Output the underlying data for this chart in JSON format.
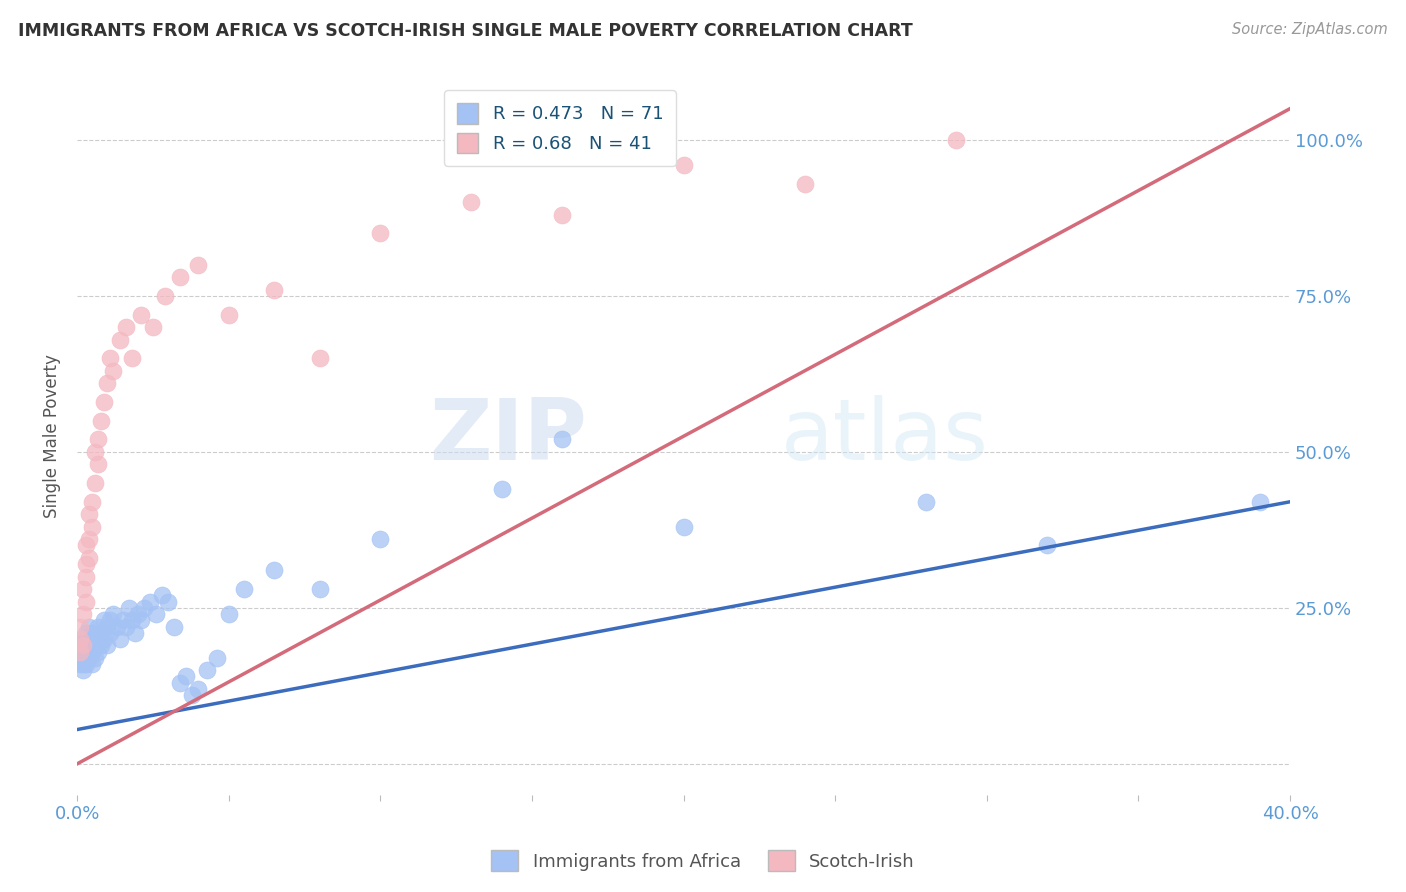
{
  "title": "IMMIGRANTS FROM AFRICA VS SCOTCH-IRISH SINGLE MALE POVERTY CORRELATION CHART",
  "source": "Source: ZipAtlas.com",
  "ylabel": "Single Male Poverty",
  "xlim": [
    0.0,
    0.4
  ],
  "ylim": [
    -0.05,
    1.1
  ],
  "xticks": [
    0.0,
    0.05,
    0.1,
    0.15,
    0.2,
    0.25,
    0.3,
    0.35,
    0.4
  ],
  "xtick_labels": [
    "0.0%",
    "",
    "",
    "",
    "",
    "",
    "",
    "",
    "40.0%"
  ],
  "ytick_positions": [
    0.0,
    0.25,
    0.5,
    0.75,
    1.0
  ],
  "ytick_labels": [
    "",
    "25.0%",
    "50.0%",
    "75.0%",
    "100.0%"
  ],
  "blue_R": 0.473,
  "blue_N": 71,
  "pink_R": 0.68,
  "pink_N": 41,
  "blue_color": "#a4c2f4",
  "pink_color": "#f4b8c1",
  "blue_line_color": "#3c6cbe",
  "pink_line_color": "#d46b7a",
  "watermark_zip": "ZIP",
  "watermark_atlas": "atlas",
  "background_color": "#ffffff",
  "grid_color": "#cccccc",
  "title_color": "#333333",
  "axis_label_color": "#555555",
  "tick_color": "#5b9bd5",
  "legend_text_color": "#1a5276",
  "blue_scatter_x": [
    0.001,
    0.001,
    0.001,
    0.001,
    0.002,
    0.002,
    0.002,
    0.002,
    0.002,
    0.002,
    0.003,
    0.003,
    0.003,
    0.003,
    0.003,
    0.003,
    0.004,
    0.004,
    0.004,
    0.004,
    0.005,
    0.005,
    0.005,
    0.005,
    0.006,
    0.006,
    0.006,
    0.007,
    0.007,
    0.007,
    0.008,
    0.008,
    0.009,
    0.009,
    0.01,
    0.01,
    0.011,
    0.011,
    0.012,
    0.013,
    0.014,
    0.015,
    0.016,
    0.017,
    0.018,
    0.019,
    0.02,
    0.021,
    0.022,
    0.024,
    0.026,
    0.028,
    0.03,
    0.032,
    0.034,
    0.036,
    0.038,
    0.04,
    0.043,
    0.046,
    0.05,
    0.055,
    0.065,
    0.08,
    0.1,
    0.14,
    0.16,
    0.2,
    0.28,
    0.32,
    0.39
  ],
  "blue_scatter_y": [
    0.18,
    0.17,
    0.19,
    0.16,
    0.19,
    0.17,
    0.2,
    0.16,
    0.18,
    0.15,
    0.2,
    0.18,
    0.17,
    0.21,
    0.16,
    0.19,
    0.18,
    0.2,
    0.17,
    0.22,
    0.19,
    0.18,
    0.21,
    0.16,
    0.2,
    0.19,
    0.17,
    0.22,
    0.18,
    0.2,
    0.21,
    0.19,
    0.2,
    0.23,
    0.22,
    0.19,
    0.23,
    0.21,
    0.24,
    0.22,
    0.2,
    0.23,
    0.22,
    0.25,
    0.23,
    0.21,
    0.24,
    0.23,
    0.25,
    0.26,
    0.24,
    0.27,
    0.26,
    0.22,
    0.13,
    0.14,
    0.11,
    0.12,
    0.15,
    0.17,
    0.24,
    0.28,
    0.31,
    0.28,
    0.36,
    0.44,
    0.52,
    0.38,
    0.42,
    0.35,
    0.42
  ],
  "pink_scatter_x": [
    0.001,
    0.001,
    0.001,
    0.002,
    0.002,
    0.002,
    0.003,
    0.003,
    0.003,
    0.003,
    0.004,
    0.004,
    0.004,
    0.005,
    0.005,
    0.006,
    0.006,
    0.007,
    0.007,
    0.008,
    0.009,
    0.01,
    0.011,
    0.012,
    0.014,
    0.016,
    0.018,
    0.021,
    0.025,
    0.029,
    0.034,
    0.04,
    0.05,
    0.065,
    0.08,
    0.1,
    0.13,
    0.16,
    0.2,
    0.24,
    0.29
  ],
  "pink_scatter_y": [
    0.18,
    0.2,
    0.22,
    0.19,
    0.24,
    0.28,
    0.26,
    0.3,
    0.35,
    0.32,
    0.36,
    0.33,
    0.4,
    0.38,
    0.42,
    0.45,
    0.5,
    0.48,
    0.52,
    0.55,
    0.58,
    0.61,
    0.65,
    0.63,
    0.68,
    0.7,
    0.65,
    0.72,
    0.7,
    0.75,
    0.78,
    0.8,
    0.72,
    0.76,
    0.65,
    0.85,
    0.9,
    0.88,
    0.96,
    0.93,
    1.0
  ],
  "blue_line_x": [
    0.0,
    0.4
  ],
  "blue_line_y": [
    0.055,
    0.42
  ],
  "pink_line_x": [
    0.0,
    0.4
  ],
  "pink_line_y": [
    0.0,
    1.05
  ],
  "figsize": [
    14.06,
    8.92
  ],
  "dpi": 100
}
